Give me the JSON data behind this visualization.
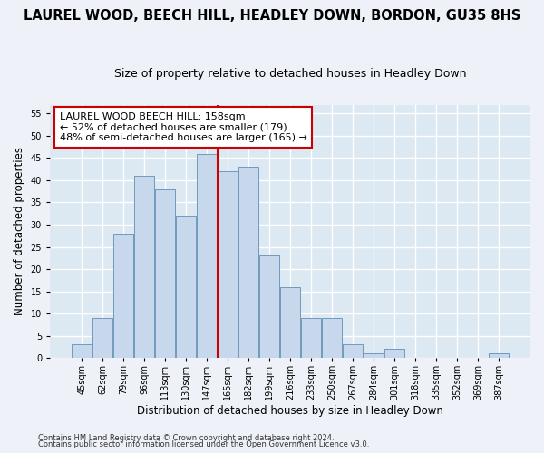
{
  "title": "LAUREL WOOD, BEECH HILL, HEADLEY DOWN, BORDON, GU35 8HS",
  "subtitle": "Size of property relative to detached houses in Headley Down",
  "xlabel": "Distribution of detached houses by size in Headley Down",
  "ylabel": "Number of detached properties",
  "footnote1": "Contains HM Land Registry data © Crown copyright and database right 2024.",
  "footnote2": "Contains public sector information licensed under the Open Government Licence v3.0.",
  "categories": [
    "45sqm",
    "62sqm",
    "79sqm",
    "96sqm",
    "113sqm",
    "130sqm",
    "147sqm",
    "165sqm",
    "182sqm",
    "199sqm",
    "216sqm",
    "233sqm",
    "250sqm",
    "267sqm",
    "284sqm",
    "301sqm",
    "318sqm",
    "335sqm",
    "352sqm",
    "369sqm",
    "387sqm"
  ],
  "values": [
    3,
    9,
    28,
    41,
    38,
    32,
    46,
    42,
    43,
    23,
    16,
    9,
    9,
    3,
    1,
    2,
    0,
    0,
    0,
    0,
    1
  ],
  "bar_color": "#c8d8ec",
  "bar_edge_color": "#7099bb",
  "vline_index": 7,
  "vline_color": "#cc0000",
  "annotation_text": "LAUREL WOOD BEECH HILL: 158sqm\n← 52% of detached houses are smaller (179)\n48% of semi-detached houses are larger (165) →",
  "annotation_box_facecolor": "#ffffff",
  "annotation_box_edgecolor": "#cc0000",
  "ylim_max": 57,
  "yticks": [
    0,
    5,
    10,
    15,
    20,
    25,
    30,
    35,
    40,
    45,
    50,
    55
  ],
  "plot_bg_color": "#dce8f2",
  "grid_color": "#ffffff",
  "fig_bg_color": "#eef2f8",
  "title_fontsize": 10.5,
  "subtitle_fontsize": 9,
  "xlabel_fontsize": 8.5,
  "ylabel_fontsize": 8.5,
  "tick_fontsize": 7,
  "annot_fontsize": 8,
  "footnote_fontsize": 6
}
